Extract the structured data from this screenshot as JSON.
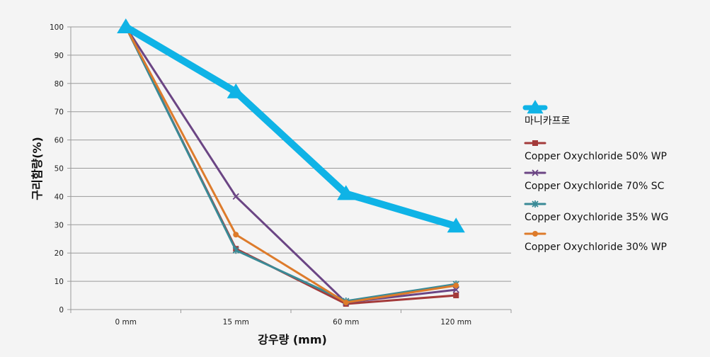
{
  "chart_data": {
    "type": "line",
    "title": "",
    "xlabel": "강우량 (mm)",
    "ylabel": "구리함량(%)",
    "categories": [
      "0 mm",
      "15 mm",
      "60 mm",
      "120 mm"
    ],
    "ylim": [
      0,
      100
    ],
    "yticks": [
      0,
      10,
      20,
      30,
      40,
      50,
      60,
      70,
      80,
      90,
      100
    ],
    "grid": true,
    "legend_position": "right",
    "series": [
      {
        "name": "마니카프로",
        "color": "#0fb3e6",
        "marker": "triangle",
        "values": [
          100,
          77,
          41,
          29.5
        ]
      },
      {
        "name": "Copper Oxychloride 50% WP",
        "color": "#a33a3a",
        "marker": "square",
        "values": [
          100,
          21.5,
          2,
          5
        ]
      },
      {
        "name": "Copper Oxychloride 70% SC",
        "color": "#6b4584",
        "marker": "x",
        "values": [
          100,
          40,
          2.5,
          7
        ]
      },
      {
        "name": "Copper Oxychloride 35% WG",
        "color": "#3a8a96",
        "marker": "star",
        "values": [
          100,
          21,
          3,
          9
        ]
      },
      {
        "name": "Copper Oxychloride 30% WP",
        "color": "#dd7b2b",
        "marker": "circle",
        "values": [
          100,
          26.5,
          2.5,
          8.5
        ]
      }
    ]
  }
}
